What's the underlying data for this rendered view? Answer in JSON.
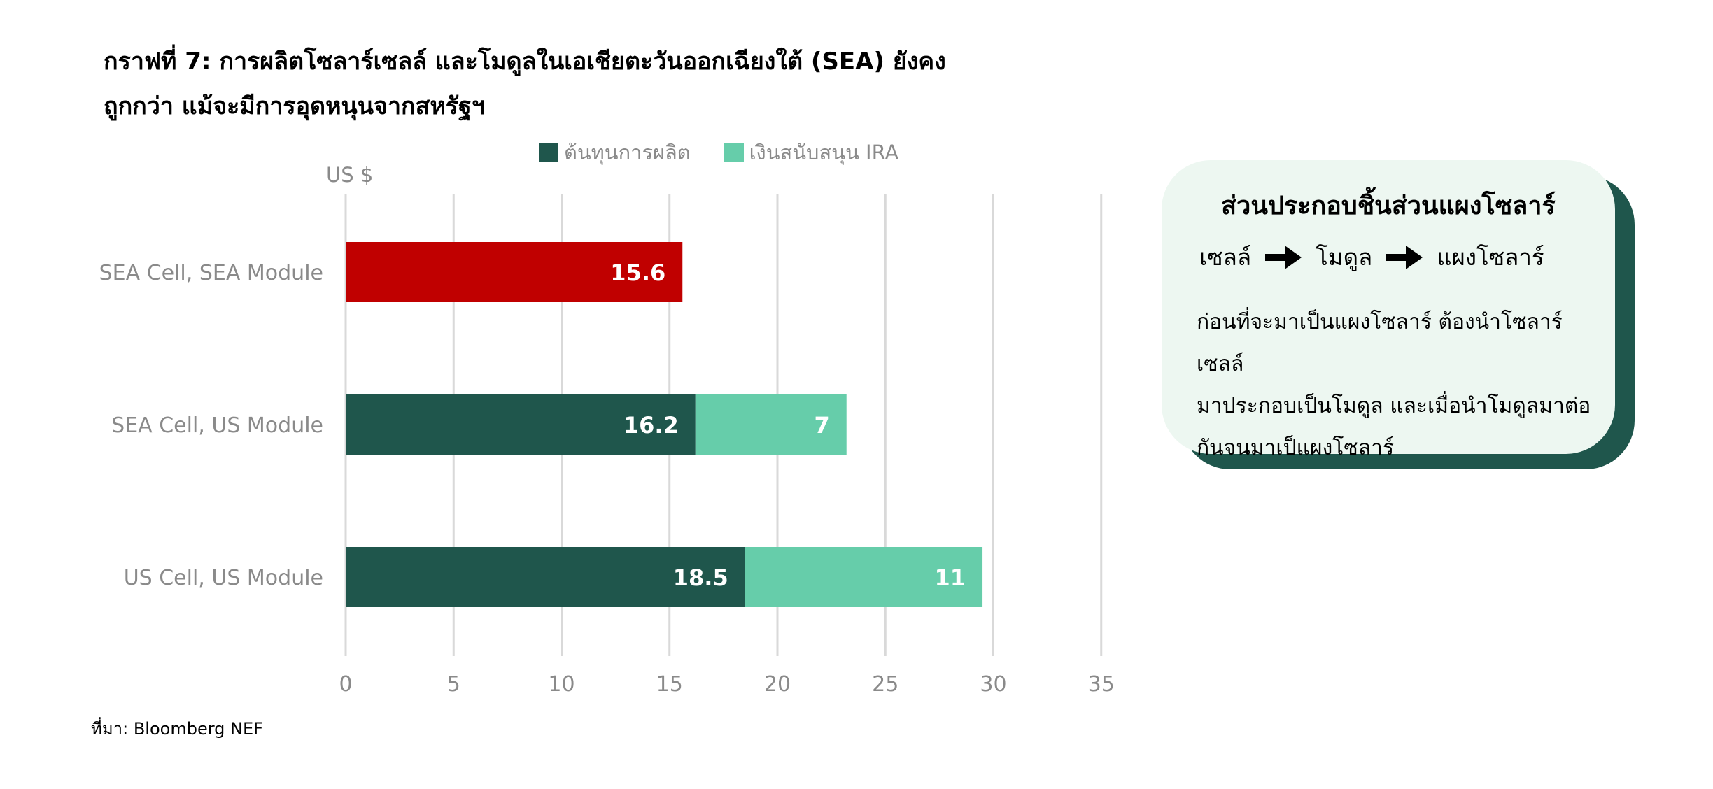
{
  "title_line1": "กราฟที่ 7: การผลิตโซลาร์เซลล์ และโมดูลในเอเชียตะวันออกเฉียงใต้ (SEA) ยังคง",
  "title_line2": "ถูกกว่า แม้จะมีการอุดหนุนจากสหรัฐฯ",
  "chart_data": {
    "type": "bar",
    "orientation": "horizontal",
    "stacked": true,
    "y_unit": "US $",
    "categories": [
      "SEA Cell, SEA Module",
      "SEA Cell, US Module",
      "US Cell, US Module"
    ],
    "series": [
      {
        "name": "ต้นทุนการผลิต",
        "values": [
          15.6,
          16.2,
          18.5
        ],
        "color": "#1f564c"
      },
      {
        "name": "เงินสนับสนุน IRA",
        "values": [
          null,
          7,
          11
        ],
        "color": "#66cdaa"
      }
    ],
    "highlight": {
      "category_index": 0,
      "color": "#c00000"
    },
    "data_labels": [
      [
        "15.6",
        "16.2",
        "18.5"
      ],
      [
        "",
        "7",
        "11"
      ]
    ],
    "xlim": [
      0,
      35
    ],
    "x_ticks": [
      0,
      5,
      10,
      15,
      20,
      25,
      30,
      35
    ],
    "x_tick_labels": [
      "0",
      "5",
      "10",
      "15",
      "20",
      "25",
      "30",
      "35"
    ],
    "grid": "vertical",
    "legend_position": "top"
  },
  "legend": {
    "item1": "ต้นทุนการผลิต",
    "item2": "เงินสนับสนุน IRA",
    "color1": "#1f564c",
    "color2": "#66cdaa"
  },
  "card": {
    "title": "ส่วนประกอบชิ้นส่วนแผงโซลาร์",
    "flow": [
      "เซลล์",
      "โมดูล",
      "แผงโซลาร์"
    ],
    "arrow_icon": "right-arrow-icon",
    "body_lines": [
      "ก่อนที่จะมาเป็นแผงโซลาร์ ต้องนำโซลาร์เซลล์",
      "มาประกอบเป็นโมดูล และเมื่อนำโมดูลมาต่อ",
      "กันจนมาเป็แผงโซลาร์"
    ],
    "bg_color": "#edf7f1",
    "shadow_color": "#1f564c"
  },
  "source": "ที่มา:  Bloomberg  NEF"
}
